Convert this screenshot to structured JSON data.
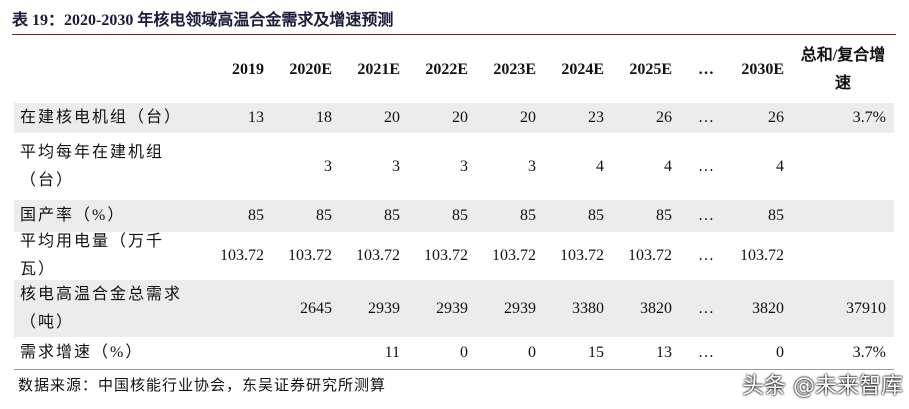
{
  "title": "表 19：2020-2030 年核电领域高温合金需求及增速预测",
  "table": {
    "header": [
      null,
      "2019",
      "2020E",
      "2021E",
      "2022E",
      "2023E",
      "2024E",
      "2025E",
      "…",
      "2030E",
      "总和/复合增速"
    ],
    "rows": [
      [
        "在建核电机组（台）",
        13,
        18,
        20,
        20,
        20,
        23,
        26,
        "…",
        26,
        "3.7%"
      ],
      [
        "平均每年在建机组（台）",
        null,
        3,
        3,
        3,
        3,
        4,
        4,
        "…",
        4,
        null
      ],
      [
        "国产率（%）",
        85,
        85,
        85,
        85,
        85,
        85,
        85,
        "…",
        85,
        null
      ],
      [
        "平均用电量（万千瓦）",
        103.72,
        103.72,
        103.72,
        103.72,
        103.72,
        103.72,
        103.72,
        "…",
        103.72,
        null
      ],
      [
        "核电高温合金总需求（吨）",
        null,
        2645,
        2939,
        2939,
        2939,
        3380,
        3820,
        "…",
        3820,
        37910
      ],
      [
        "需求增速（%）",
        null,
        null,
        11,
        0,
        0,
        15,
        13,
        "…",
        0,
        "3.7%"
      ]
    ]
  },
  "source": "数据来源：中国核能行业协会，东吴证券研究所测算",
  "watermark": "头条 @未来智库"
}
